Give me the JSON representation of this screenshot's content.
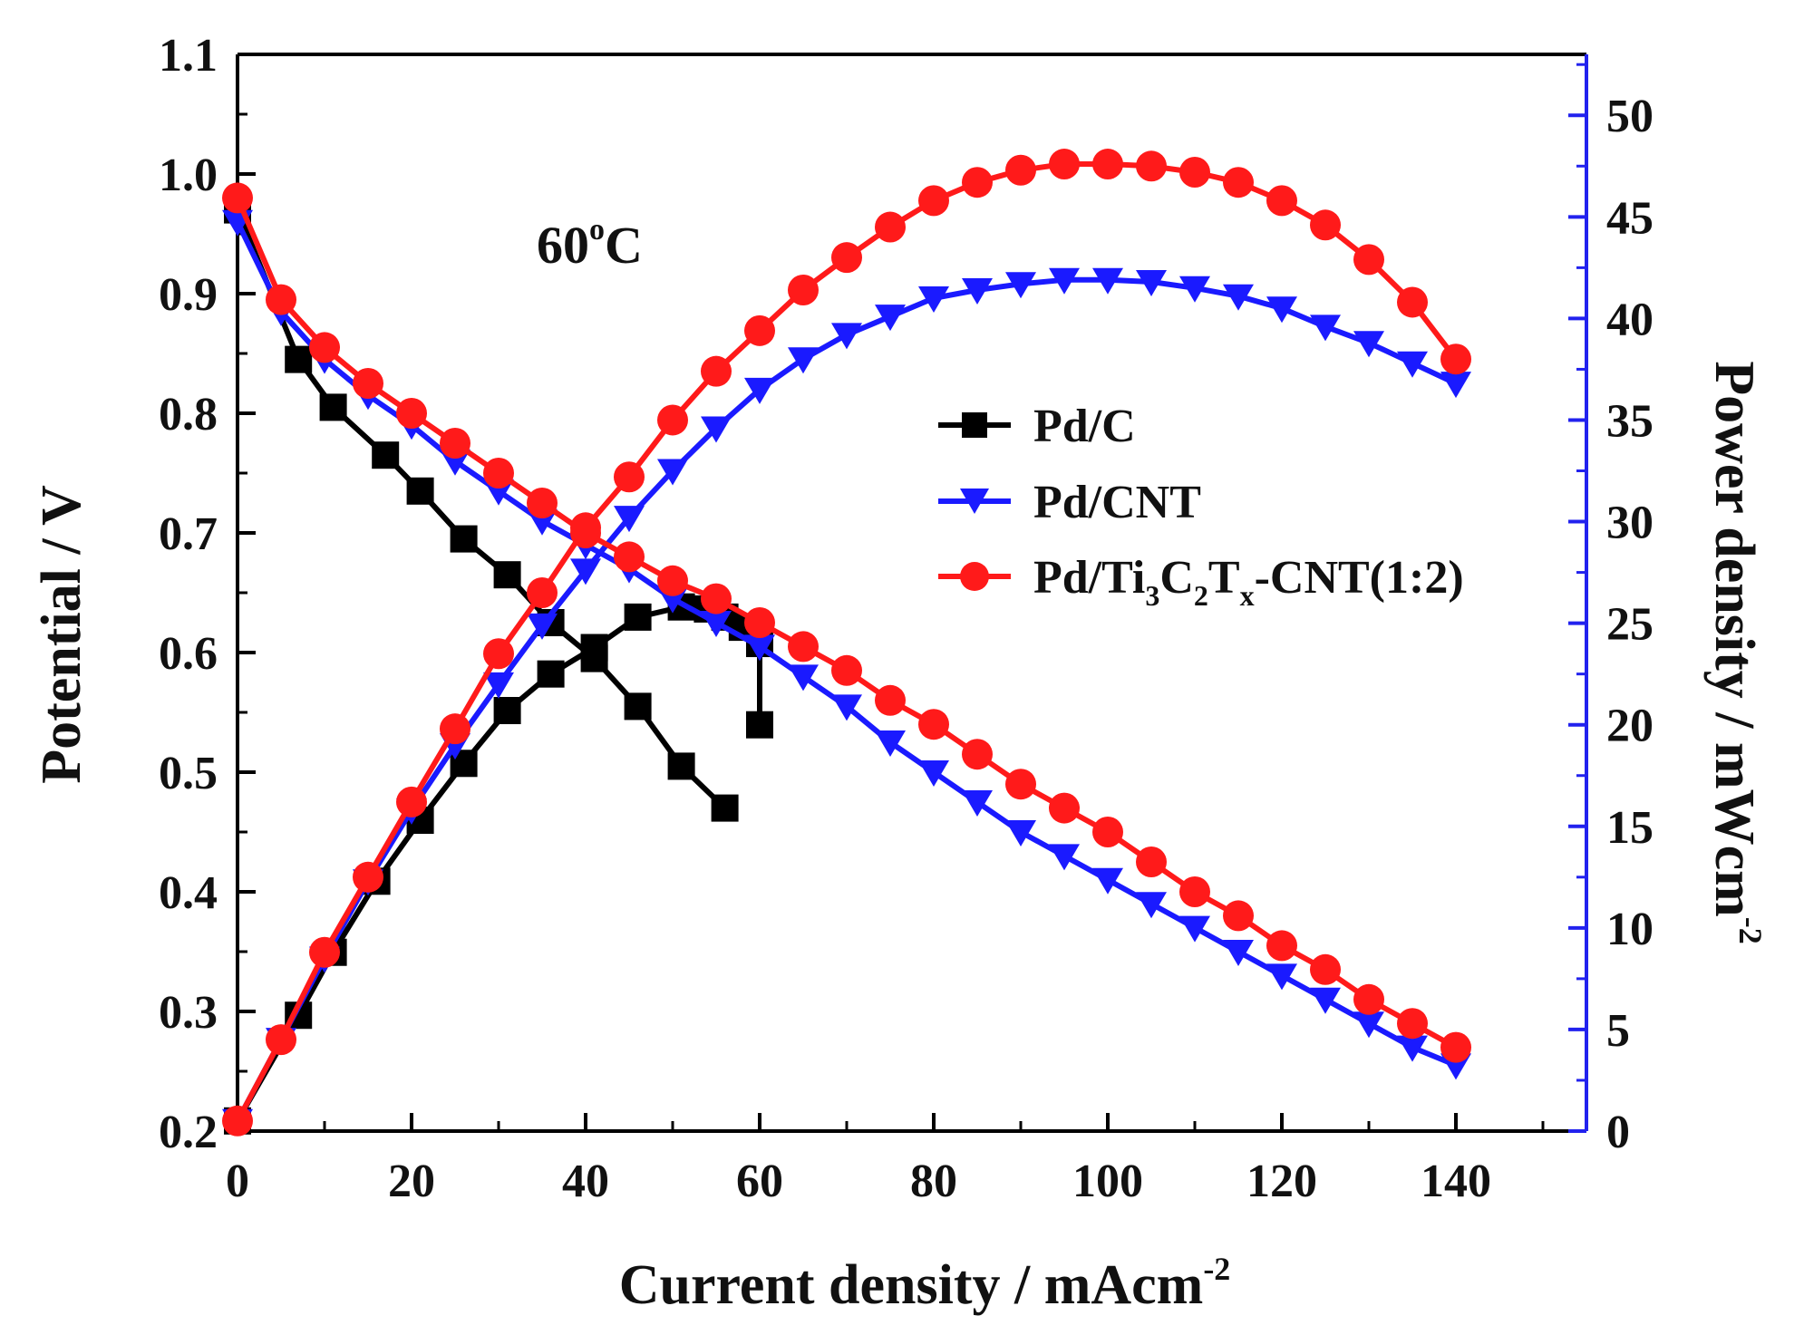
{
  "chart_data": {
    "type": "line",
    "title": "",
    "annotation": {
      "base": "60",
      "sup": "o",
      "tail": "C"
    },
    "xlabel": {
      "main": "Current density / mAcm",
      "sup": "-2"
    },
    "ylabel_left": "Potential / V",
    "ylabel_right": {
      "main": "Power density / mWcm",
      "sup": "-2"
    },
    "xlim": [
      0,
      155
    ],
    "ylim_left": [
      0.2,
      1.1
    ],
    "ylim_right": [
      0,
      53
    ],
    "xticks": [
      0,
      20,
      40,
      60,
      80,
      100,
      120,
      140
    ],
    "yticks_left": [
      "0.2",
      "0.3",
      "0.4",
      "0.5",
      "0.6",
      "0.7",
      "0.8",
      "0.9",
      "1.0",
      "1.1"
    ],
    "yticks_right": [
      "0",
      "5",
      "10",
      "15",
      "20",
      "25",
      "30",
      "35",
      "40",
      "45",
      "50"
    ],
    "legend": [
      {
        "label": "Pd/C",
        "color": "#000000",
        "marker": "square"
      },
      {
        "label": "Pd/CNT",
        "color": "#1a1aff",
        "marker": "triangle-down"
      },
      {
        "label": {
          "pre": "Pd/Ti",
          "s1": "3",
          "m1": "C",
          "s2": "2",
          "m2": "T",
          "s3": "x",
          "post": "-CNT(1:2)"
        },
        "color": "#ff1a1a",
        "marker": "circle"
      }
    ],
    "legend_position": "center-right",
    "colors": {
      "left_axis": "#000000",
      "right_axis": "#2222ee"
    },
    "series": [
      {
        "name": "Pd/C",
        "axis": "left",
        "curve": "polarization",
        "color": "#000000",
        "marker": "square",
        "x": [
          0,
          7,
          11,
          17,
          21,
          26,
          31,
          36,
          41,
          46,
          51,
          56
        ],
        "y": [
          0.97,
          0.845,
          0.805,
          0.765,
          0.735,
          0.695,
          0.665,
          0.625,
          0.595,
          0.555,
          0.505,
          0.47
        ]
      },
      {
        "name": "Pd/C",
        "axis": "right",
        "curve": "power",
        "color": "#000000",
        "marker": "square",
        "x": [
          0,
          7,
          11,
          16,
          21,
          26,
          31,
          36,
          41,
          46,
          51,
          54,
          56,
          58,
          60,
          60
        ],
        "y": [
          0.5,
          5.7,
          8.8,
          12.3,
          15.3,
          18.1,
          20.7,
          22.5,
          23.8,
          25.3,
          25.8,
          25.7,
          25.3,
          24.8,
          24.0,
          20.0
        ]
      },
      {
        "name": "Pd/CNT",
        "axis": "left",
        "curve": "polarization",
        "color": "#1a1aff",
        "marker": "triangle-down",
        "x": [
          0,
          5,
          10,
          15,
          20,
          25,
          30,
          35,
          40,
          45,
          50,
          55,
          60,
          65,
          70,
          75,
          80,
          85,
          90,
          95,
          100,
          105,
          110,
          115,
          120,
          125,
          130,
          135,
          140
        ],
        "y": [
          0.96,
          0.885,
          0.845,
          0.815,
          0.79,
          0.76,
          0.735,
          0.71,
          0.69,
          0.67,
          0.645,
          0.625,
          0.605,
          0.58,
          0.555,
          0.525,
          0.5,
          0.475,
          0.45,
          0.43,
          0.41,
          0.39,
          0.37,
          0.35,
          0.33,
          0.31,
          0.29,
          0.27,
          0.255
        ]
      },
      {
        "name": "Pd/CNT",
        "axis": "right",
        "curve": "power",
        "color": "#1a1aff",
        "marker": "triangle-down",
        "x": [
          0,
          5,
          10,
          15,
          20,
          25,
          30,
          35,
          40,
          45,
          50,
          55,
          60,
          65,
          70,
          75,
          80,
          85,
          90,
          95,
          100,
          105,
          110,
          115,
          120,
          125,
          130,
          135,
          140
        ],
        "y": [
          0.5,
          4.5,
          8.5,
          12.3,
          15.8,
          19.0,
          22.0,
          24.9,
          27.6,
          30.2,
          32.5,
          34.6,
          36.5,
          38.0,
          39.2,
          40.1,
          41.0,
          41.4,
          41.7,
          41.9,
          41.9,
          41.8,
          41.5,
          41.1,
          40.5,
          39.6,
          38.8,
          37.8,
          36.8
        ]
      },
      {
        "name": "Pd/Ti3C2Tx-CNT(1:2)",
        "axis": "left",
        "curve": "polarization",
        "color": "#ff1a1a",
        "marker": "circle",
        "x": [
          0,
          5,
          10,
          15,
          20,
          25,
          30,
          35,
          40,
          45,
          50,
          55,
          60,
          65,
          70,
          75,
          80,
          85,
          90,
          95,
          100,
          105,
          110,
          115,
          120,
          125,
          130,
          135,
          140
        ],
        "y": [
          0.98,
          0.895,
          0.855,
          0.825,
          0.8,
          0.775,
          0.75,
          0.725,
          0.7,
          0.68,
          0.66,
          0.645,
          0.625,
          0.605,
          0.585,
          0.56,
          0.54,
          0.515,
          0.49,
          0.47,
          0.45,
          0.425,
          0.4,
          0.38,
          0.355,
          0.335,
          0.31,
          0.29,
          0.27
        ]
      },
      {
        "name": "Pd/Ti3C2Tx-CNT(1:2)",
        "axis": "right",
        "curve": "power",
        "color": "#ff1a1a",
        "marker": "circle",
        "x": [
          0,
          5,
          10,
          15,
          20,
          25,
          30,
          35,
          40,
          45,
          50,
          55,
          60,
          65,
          70,
          75,
          80,
          85,
          90,
          95,
          100,
          105,
          110,
          115,
          120,
          125,
          130,
          135,
          140
        ],
        "y": [
          0.5,
          4.5,
          8.8,
          12.5,
          16.2,
          19.8,
          23.5,
          26.5,
          29.7,
          32.2,
          35.0,
          37.4,
          39.4,
          41.4,
          43.0,
          44.5,
          45.8,
          46.7,
          47.3,
          47.6,
          47.6,
          47.5,
          47.2,
          46.7,
          45.8,
          44.6,
          42.9,
          40.8,
          38.0
        ]
      }
    ]
  }
}
